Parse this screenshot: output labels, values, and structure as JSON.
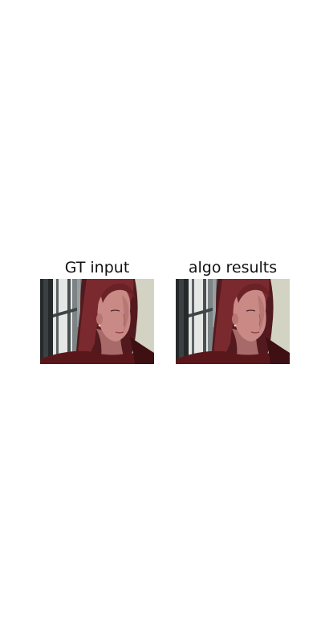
{
  "figure": {
    "panels": [
      {
        "title": "GT input"
      },
      {
        "title": "algo results"
      }
    ]
  },
  "colors": {
    "background": "#ffffff",
    "wall": "#d3d3c4",
    "window_frame_dark": "#25292a",
    "window_frame_mid": "#5c6264",
    "window_glass": "#e4e7e4",
    "hair": "#7a2a2e",
    "hair_dark": "#521a1e",
    "skin": "#c98a86",
    "skin_shadow": "#a86a68",
    "sweater": "#5a171b"
  }
}
